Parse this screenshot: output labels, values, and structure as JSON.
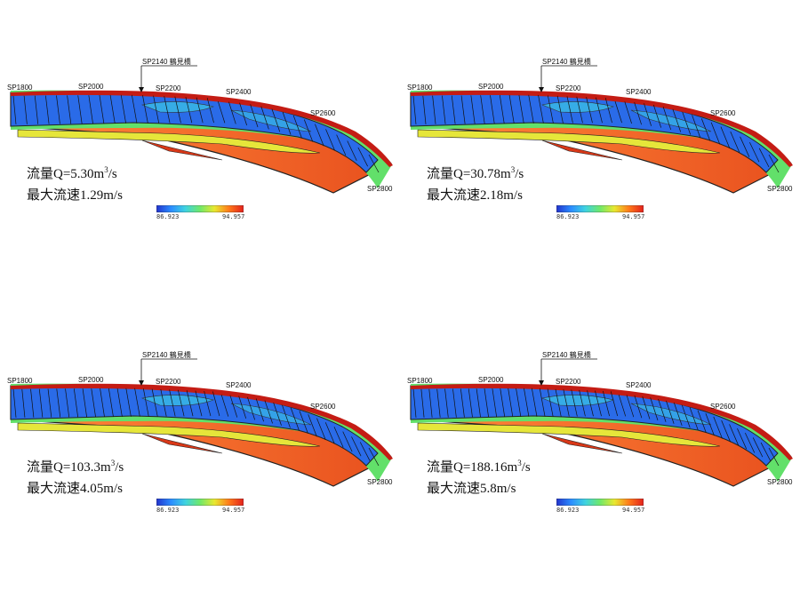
{
  "panels": [
    {
      "flow_label": "流量Q=5.30m",
      "flow_sup": "3",
      "flow_unit": "/s",
      "vmax": "最大流速1.29m/s"
    },
    {
      "flow_label": "流量Q=30.78m",
      "flow_sup": "3",
      "flow_unit": "/s",
      "vmax": "最大流速2.18m/s"
    },
    {
      "flow_label": "流量Q=103.3m",
      "flow_sup": "3",
      "flow_unit": "/s",
      "vmax": "最大流速4.05m/s"
    },
    {
      "flow_label": "流量Q=188.16m",
      "flow_sup": "3",
      "flow_unit": "/s",
      "vmax": "最大流速5.8m/s"
    }
  ],
  "stations": {
    "sp1800": "SP1800",
    "sp2000": "SP2000",
    "sp2200": "SP2200",
    "sp2400": "SP2400",
    "sp2600": "SP2600",
    "sp2800": "SP2800"
  },
  "bridge_label": "SP2140 鶴見橋",
  "colorbar": {
    "min": "86.923",
    "max": "94.957",
    "colors": [
      "#2233cc",
      "#2b8cff",
      "#3fd3e0",
      "#6fe86a",
      "#e8e830",
      "#ff7a1a",
      "#e2201c"
    ]
  },
  "colors": {
    "water_deep": "#2a6be8",
    "water_mid": "#3cc7e6",
    "bank_green": "#62e06a",
    "bank_yellow": "#e6e63a",
    "floodplain": "#f0622a",
    "edge_red": "#c41c14"
  }
}
